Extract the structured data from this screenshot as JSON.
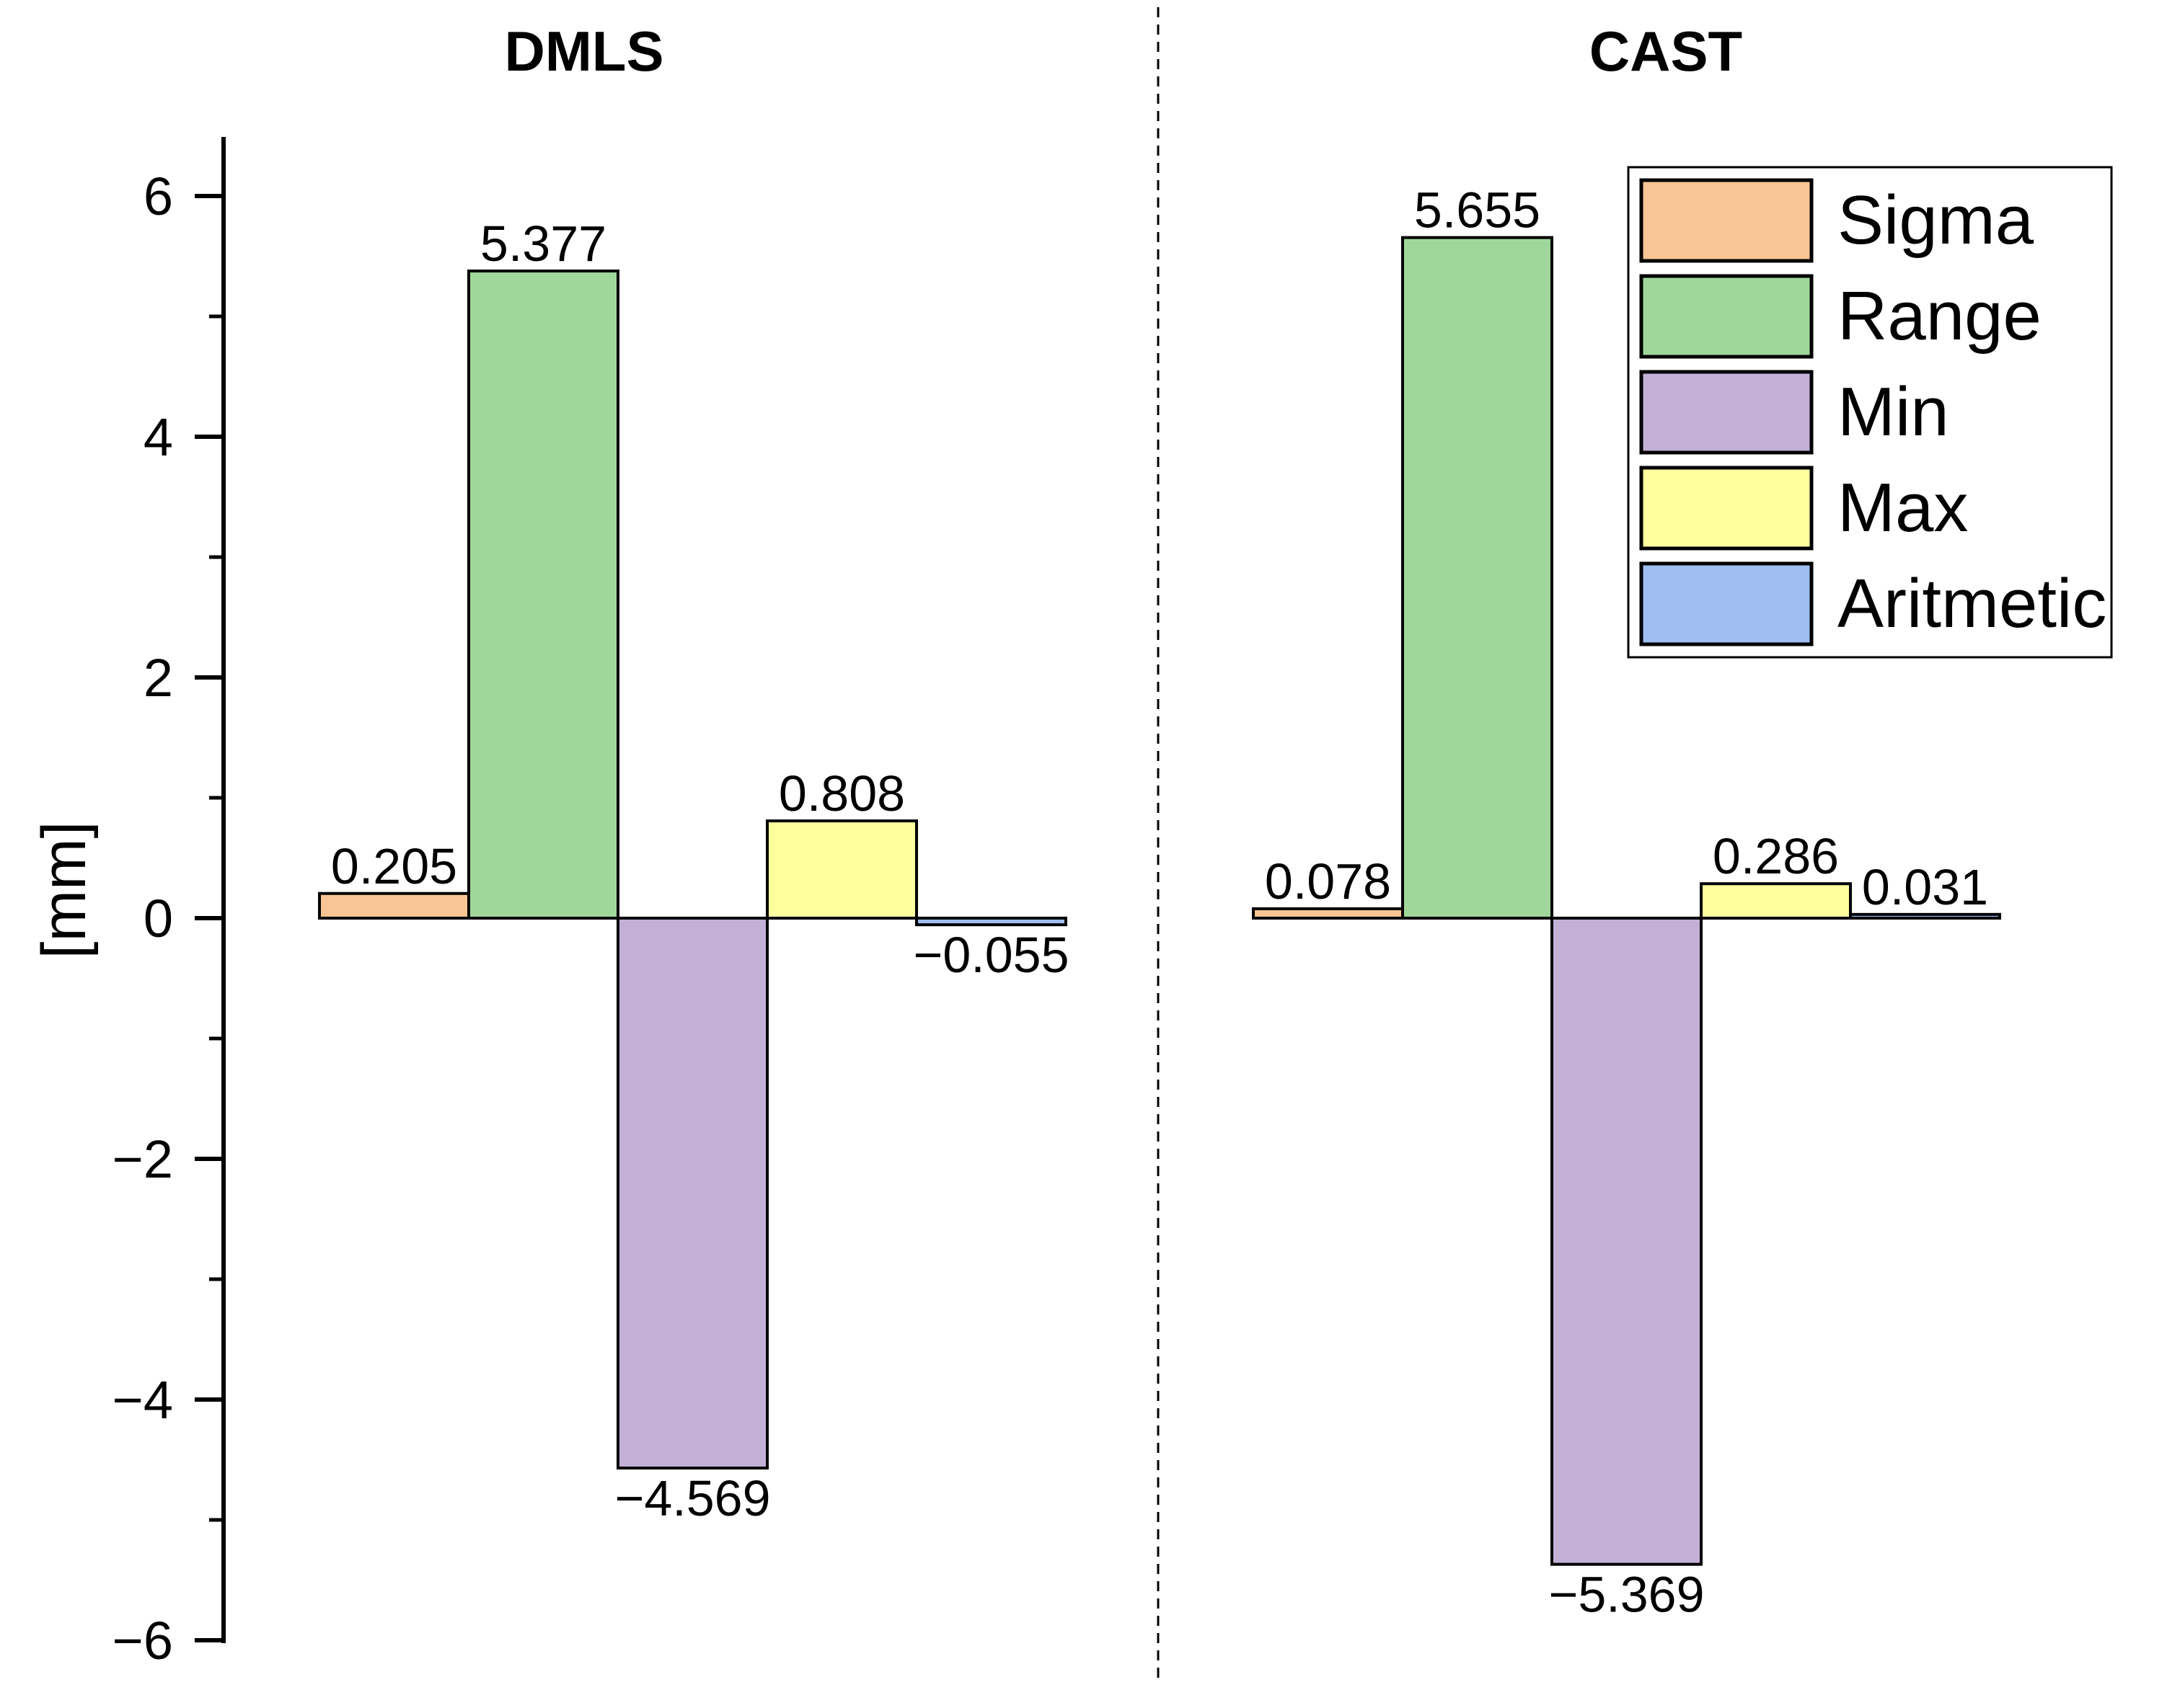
{
  "chart_data": {
    "type": "bar",
    "ylabel": "[mm]",
    "ylim": [
      -6,
      6.5
    ],
    "yticks": [
      -6,
      -4,
      -2,
      0,
      2,
      4,
      6
    ],
    "ytick_labels": [
      "−6",
      "−4",
      "−2",
      "0",
      "2",
      "4",
      "6"
    ],
    "legend_position": "top-right",
    "series": [
      {
        "name": "Sigma",
        "color": "#f9c594"
      },
      {
        "name": "Range",
        "color": "#9fd79b"
      },
      {
        "name": "Min",
        "color": "#c2b0d6"
      },
      {
        "name": "Max",
        "color": "#ffff9f"
      },
      {
        "name": "Aritmetic",
        "color": "#9fbef1"
      }
    ],
    "groups": [
      {
        "title": "DMLS",
        "values": [
          0.205,
          5.377,
          -4.569,
          0.808,
          -0.055
        ],
        "labels": [
          "0.205",
          "5.377",
          "−4.569",
          "0.808",
          "−0.055"
        ]
      },
      {
        "title": "CAST",
        "values": [
          0.078,
          5.655,
          -5.369,
          0.286,
          0.031
        ],
        "labels": [
          "0.078",
          "5.655",
          "−5.369",
          "0.286",
          "0.031"
        ]
      }
    ]
  }
}
